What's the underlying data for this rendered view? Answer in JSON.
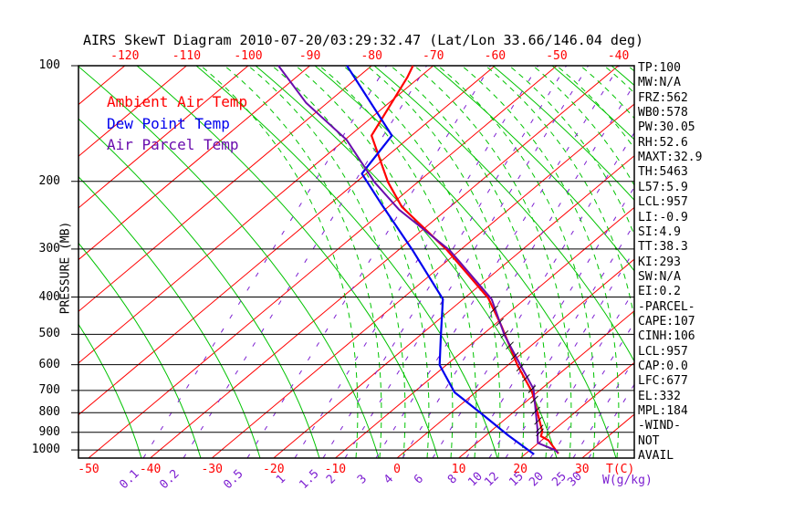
{
  "title": "AIRS SkewT Diagram 2010-07-20/03:29:32.47 (Lat/Lon 33.66/146.04 deg)",
  "colors": {
    "ambient": "#ff0000",
    "dew": "#0000ee",
    "parcel": "#6a0dad",
    "isotherm": "#ff0000",
    "adiabat": "#00c300",
    "mixing": "#7d1fd1",
    "axis": "#000000",
    "hatch": "#111111"
  },
  "legend": {
    "items": [
      {
        "label": "Ambient Air Temp",
        "color": "ambient"
      },
      {
        "label": "Dew Point Temp",
        "color": "dew"
      },
      {
        "label": "Air Parcel Temp",
        "color": "parcel"
      }
    ]
  },
  "axes": {
    "pressure_label": "PRESSURE (MB)",
    "pressure_ticks": [
      100,
      200,
      300,
      400,
      500,
      600,
      700,
      800,
      900,
      1000
    ],
    "temp_ticks_top": [
      -120,
      -110,
      -100,
      -90,
      -80,
      -70,
      -60,
      -50,
      -40
    ],
    "temp_ticks_bottom": [
      -50,
      -40,
      -30,
      -20,
      -10,
      0,
      10,
      20,
      30
    ],
    "temp_unit": "T(C)",
    "mixing_unit": "W(g/kg)",
    "mixing_ticks": [
      [
        0.1,
        142
      ],
      [
        0.2,
        186
      ],
      [
        0.5,
        256
      ],
      [
        1,
        308
      ],
      [
        1.5,
        339
      ],
      [
        2,
        363
      ],
      [
        3,
        397
      ],
      [
        4,
        426
      ],
      [
        6,
        459
      ],
      [
        8,
        496
      ],
      [
        10,
        521
      ],
      [
        12,
        539
      ],
      [
        15,
        566
      ],
      [
        20,
        588
      ],
      [
        25,
        613
      ],
      [
        30,
        630
      ]
    ]
  },
  "stats_panel": {
    "lines": [
      "TP:100",
      "MW:N/A",
      "FRZ:562",
      "WB0:578",
      "PW:30.05",
      "RH:52.6",
      "MAXT:32.9",
      "TH:5463",
      "L57:5.9",
      "LCL:957",
      "LI:-0.9",
      "SI:4.9",
      "TT:38.3",
      "KI:293",
      "SW:N/A",
      "EI:0.2",
      "-PARCEL-",
      "CAPE:107",
      "CINH:106",
      "LCL:957",
      "CAP:0.0",
      "LFC:677",
      "EL:332",
      "MPL:184",
      "-WIND-",
      "NOT",
      "AVAIL"
    ]
  },
  "chart_data": {
    "type": "line",
    "subtype": "skewt-log-p",
    "pressure_axis": {
      "top_mb": 100,
      "bottom_mb": 1050,
      "scale": "log"
    },
    "temp_axis": {
      "unit": "C",
      "surface_range": [
        -52,
        38
      ]
    },
    "series": [
      {
        "name": "Ambient Air Temp",
        "color": "ambient",
        "points": [
          [
            100,
            -73.3
          ],
          [
            107,
            -72.0
          ],
          [
            152,
            -66.5
          ],
          [
            201,
            -54.8
          ],
          [
            233,
            -47.8
          ],
          [
            302,
            -32.1
          ],
          [
            403,
            -16.1
          ],
          [
            476,
            -8.6
          ],
          [
            601,
            1.5
          ],
          [
            708,
            9.2
          ],
          [
            895,
            18.4
          ],
          [
            921,
            19.1
          ],
          [
            944,
            21.1
          ],
          [
            1022,
            25.3
          ]
        ]
      },
      {
        "name": "Dew Point Temp",
        "color": "dew",
        "points": [
          [
            100,
            -84.0
          ],
          [
            152,
            -63.2
          ],
          [
            191,
            -60.7
          ],
          [
            228,
            -51.9
          ],
          [
            302,
            -37.7
          ],
          [
            405,
            -23.3
          ],
          [
            502,
            -16.7
          ],
          [
            601,
            -11.1
          ],
          [
            708,
            -3.4
          ],
          [
            802,
            4.9
          ],
          [
            916,
            13.6
          ],
          [
            1027,
            21.5
          ]
        ]
      },
      {
        "name": "Air Parcel Temp",
        "color": "parcel",
        "points": [
          [
            100,
            -95.1
          ],
          [
            125,
            -83.4
          ],
          [
            156,
            -69.7
          ],
          [
            201,
            -57.0
          ],
          [
            237,
            -47.7
          ],
          [
            302,
            -31.7
          ],
          [
            405,
            -15.4
          ],
          [
            502,
            -6.4
          ],
          [
            601,
            2.0
          ],
          [
            693,
            8.7
          ],
          [
            886,
            17.3
          ],
          [
            959,
            19.9
          ],
          [
            1000,
            24.0
          ],
          [
            1017,
            25.1
          ]
        ]
      }
    ],
    "cape_hatch_pressures": [
      430,
      465,
      500,
      535,
      570,
      610,
      650,
      695,
      740,
      790,
      840,
      880,
      900
    ]
  }
}
